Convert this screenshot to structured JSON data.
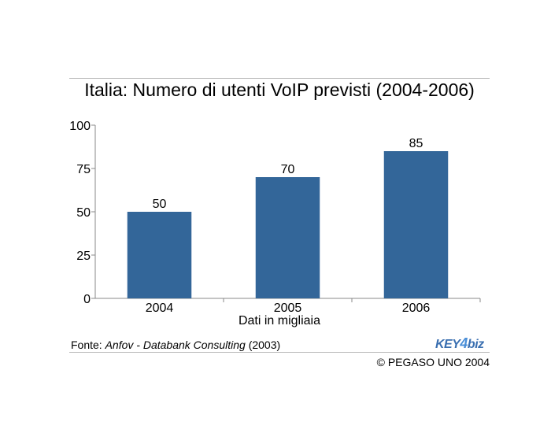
{
  "title": "Italia: Numero di utenti VoIP previsti (2004-2006)",
  "chart_data": {
    "type": "bar",
    "title": "Italia: Numero di utenti VoIP previsti (2004-2006)",
    "categories": [
      "2004",
      "2005",
      "2006"
    ],
    "values": [
      50,
      70,
      85
    ],
    "data_labels": [
      "50",
      "70",
      "85"
    ],
    "xlabel": "Dati in migliaia",
    "ylabel": "",
    "ylim": [
      0,
      100
    ],
    "yticks": [
      0,
      25,
      50,
      75,
      100
    ],
    "ytick_labels": [
      "0",
      "25",
      "50",
      "75",
      "100"
    ],
    "grid": false,
    "bar_color": "#336699"
  },
  "source": {
    "prefix": "Fonte: ",
    "name": "Anfov - Databank Consulting",
    "year": " (2003)"
  },
  "logo": {
    "part1": "KEY",
    "part2": "4",
    "part3": "biz"
  },
  "copyright": "© PEGASO UNO 2004"
}
